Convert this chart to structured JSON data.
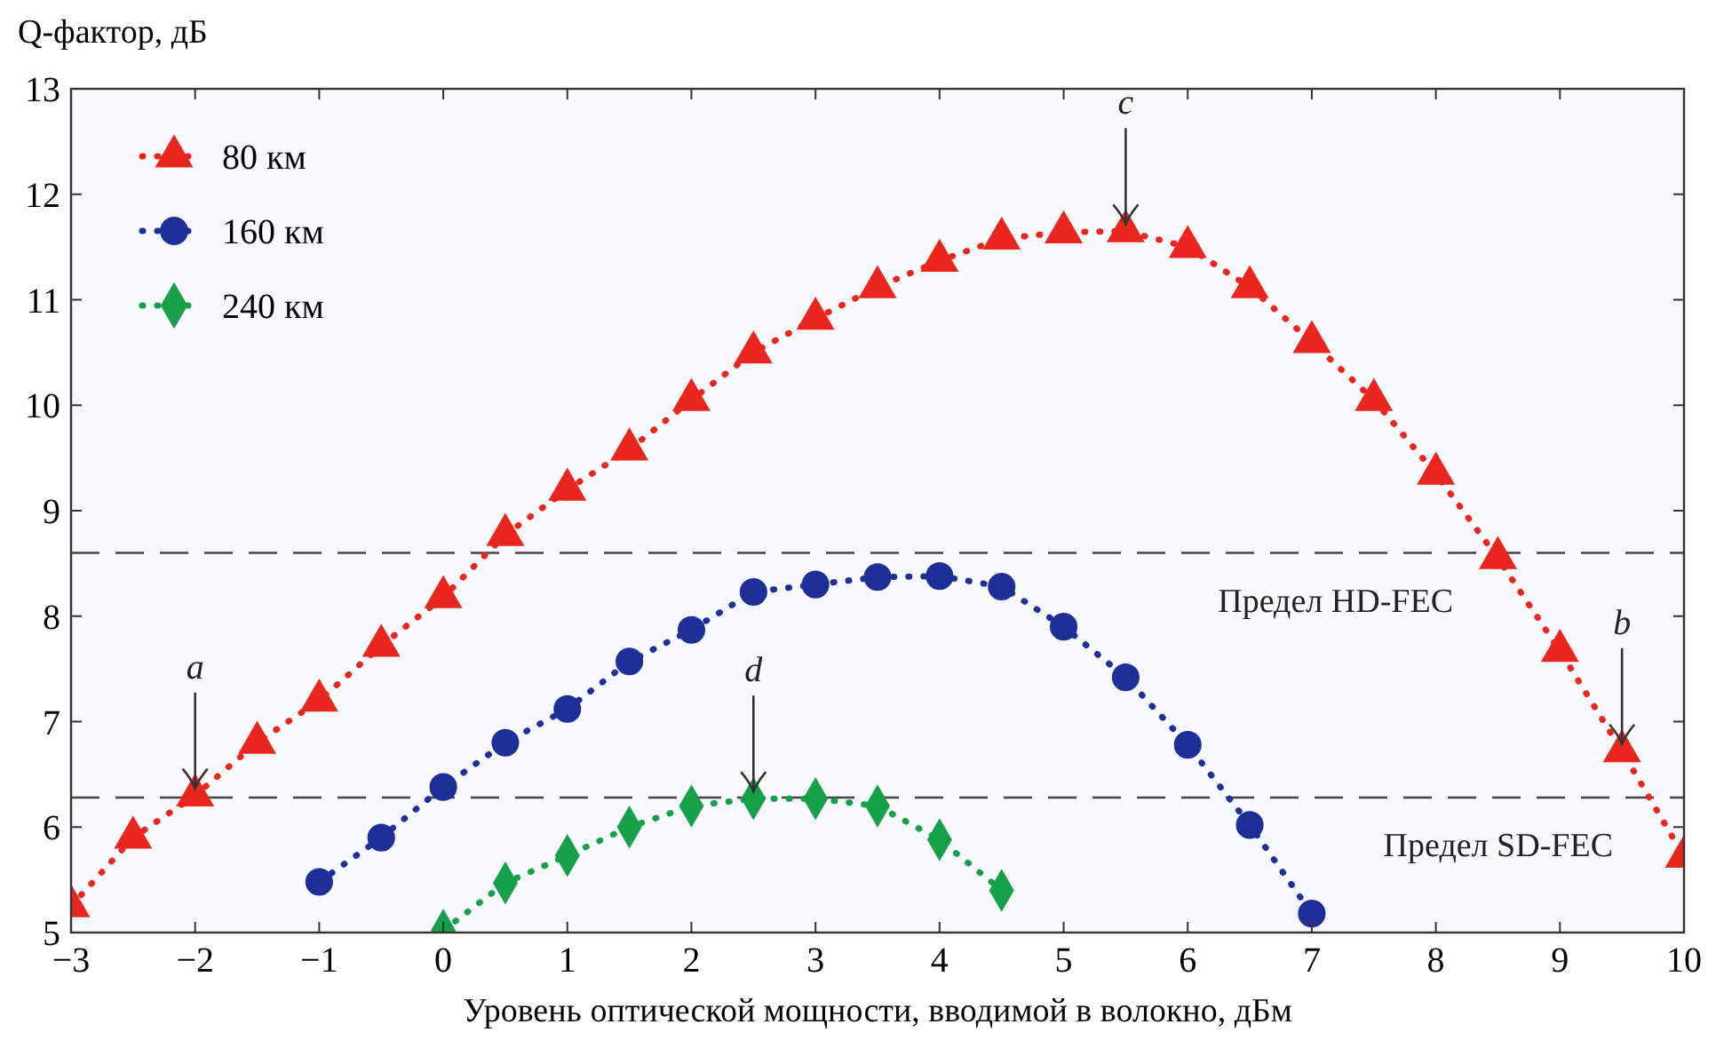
{
  "chart_data": {
    "type": "line",
    "ylabel": "Q-фактор, дБ",
    "xlabel": "Уровень оптической мощности, вводимой в волокно, дБм",
    "xlim": [
      -3,
      10
    ],
    "xticks": [
      {
        "value": -3,
        "label": "−3"
      },
      {
        "value": -2,
        "label": "−2"
      },
      {
        "value": -1,
        "label": "−1"
      },
      0,
      1,
      2,
      3,
      4,
      5,
      6,
      7,
      8,
      9,
      10
    ],
    "ylim": [
      5,
      13
    ],
    "yticks": [
      5,
      6,
      7,
      8,
      9,
      10,
      11,
      12,
      13
    ],
    "legend": "top left",
    "line_style": "dotted",
    "series": [
      {
        "name": "80 км",
        "color": "#e8261e",
        "marker": "triangle",
        "x": [
          -3,
          -2.5,
          -2,
          -1.5,
          -1,
          -0.5,
          0,
          0.5,
          1,
          1.5,
          2,
          2.5,
          3,
          3.5,
          4,
          4.5,
          5,
          5.5,
          6,
          6.5,
          7,
          7.5,
          8,
          8.5,
          9,
          9.5,
          10
        ],
        "values": [
          5.25,
          5.9,
          6.3,
          6.8,
          7.2,
          7.72,
          8.18,
          8.77,
          9.2,
          9.58,
          10.05,
          10.5,
          10.82,
          11.12,
          11.37,
          11.58,
          11.64,
          11.65,
          11.5,
          11.12,
          10.6,
          10.05,
          9.35,
          8.55,
          7.67,
          6.72,
          5.72
        ]
      },
      {
        "name": "160 км",
        "color": "#1f2f9a",
        "marker": "circle",
        "x": [
          -1,
          -0.5,
          0,
          0.5,
          1,
          1.5,
          2,
          2.5,
          3,
          3.5,
          4,
          4.5,
          5,
          5.5,
          6,
          6.5,
          7
        ],
        "values": [
          5.48,
          5.9,
          6.38,
          6.8,
          7.12,
          7.57,
          7.87,
          8.23,
          8.3,
          8.37,
          8.38,
          8.28,
          7.9,
          7.42,
          6.78,
          6.02,
          5.18
        ]
      },
      {
        "name": "240 км",
        "color": "#16a04a",
        "marker": "diamond",
        "x": [
          0,
          0.5,
          1,
          1.5,
          2,
          2.5,
          3,
          3.5,
          4,
          4.5
        ],
        "values": [
          5.02,
          5.47,
          5.73,
          6.0,
          6.2,
          6.27,
          6.27,
          6.2,
          5.88,
          5.4
        ]
      }
    ],
    "ref_lines": [
      {
        "axis": "y",
        "value": 8.6,
        "label": "Предел HD-FEC",
        "color": "#444444",
        "line_style": "dashed"
      },
      {
        "axis": "y",
        "value": 6.28,
        "label": "Предел SD-FEC",
        "color": "#444444",
        "line_style": "dashed"
      }
    ],
    "annotations": [
      {
        "text": "a",
        "x": -2,
        "y": 6.3
      },
      {
        "text": "b",
        "x": 9.5,
        "y": 6.72
      },
      {
        "text": "c",
        "x": 5.5,
        "y": 11.65
      },
      {
        "text": "d",
        "x": 2.5,
        "y": 6.27
      }
    ]
  }
}
